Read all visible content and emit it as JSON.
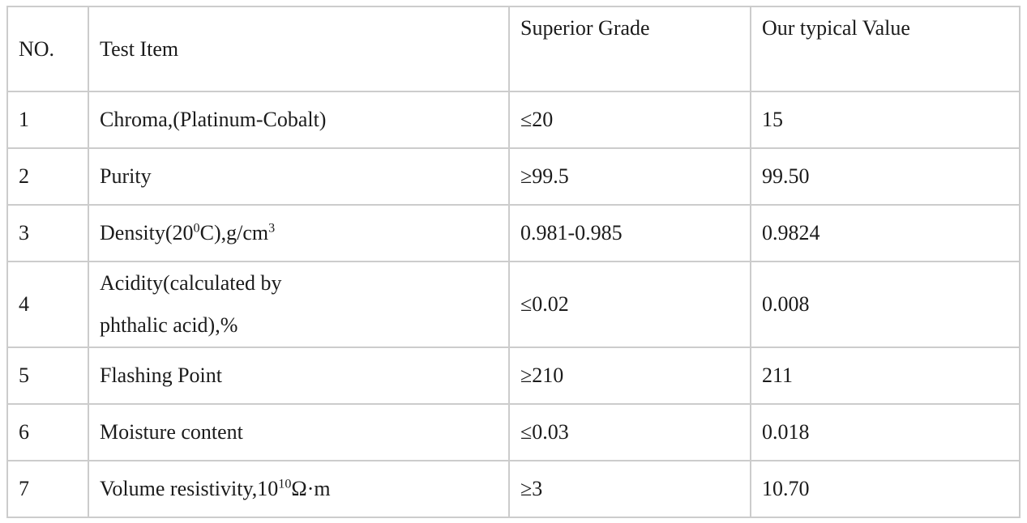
{
  "page": {
    "background_color": "#ffffff",
    "text_color": "#1b1b1b",
    "border_color": "#cccccc"
  },
  "table": {
    "headers": [
      {
        "label": "NO."
      },
      {
        "label": "Test Item"
      },
      {
        "label": "Superior Grade"
      },
      {
        "label": "Our typical Value"
      }
    ],
    "rows": [
      {
        "no": "1",
        "item": [
          {
            "t": "Chroma,(Platinum-Cobalt)"
          }
        ],
        "superior_grade": "≤20",
        "typical_value": "15"
      },
      {
        "no": "2",
        "item": [
          {
            "t": "Purity"
          }
        ],
        "superior_grade": "≥99.5",
        "typical_value": "99.50"
      },
      {
        "no": "3",
        "item": [
          {
            "t": "Density(20"
          },
          {
            "t": "0",
            "sup": true
          },
          {
            "t": "C),g/cm"
          },
          {
            "t": "3",
            "sup": true
          }
        ],
        "superior_grade": "0.981-0.985",
        "typical_value": "0.9824"
      },
      {
        "no": "4",
        "item": [
          {
            "t": "Acidity(calculated by"
          },
          {
            "br": true
          },
          {
            "t": "phthalic acid),%"
          }
        ],
        "superior_grade": "≤0.02",
        "typical_value": "0.008"
      },
      {
        "no": "5",
        "item": [
          {
            "t": "Flashing Point"
          }
        ],
        "superior_grade": "≥210",
        "typical_value": "211"
      },
      {
        "no": "6",
        "item": [
          {
            "t": "Moisture content"
          }
        ],
        "superior_grade": "≤0.03",
        "typical_value": "0.018"
      },
      {
        "no": "7",
        "item": [
          {
            "t": "Volume resistivity,10"
          },
          {
            "t": "10",
            "sup": true
          },
          {
            "t": "Ω·m"
          }
        ],
        "superior_grade": "≥3",
        "typical_value": "10.70"
      }
    ]
  }
}
